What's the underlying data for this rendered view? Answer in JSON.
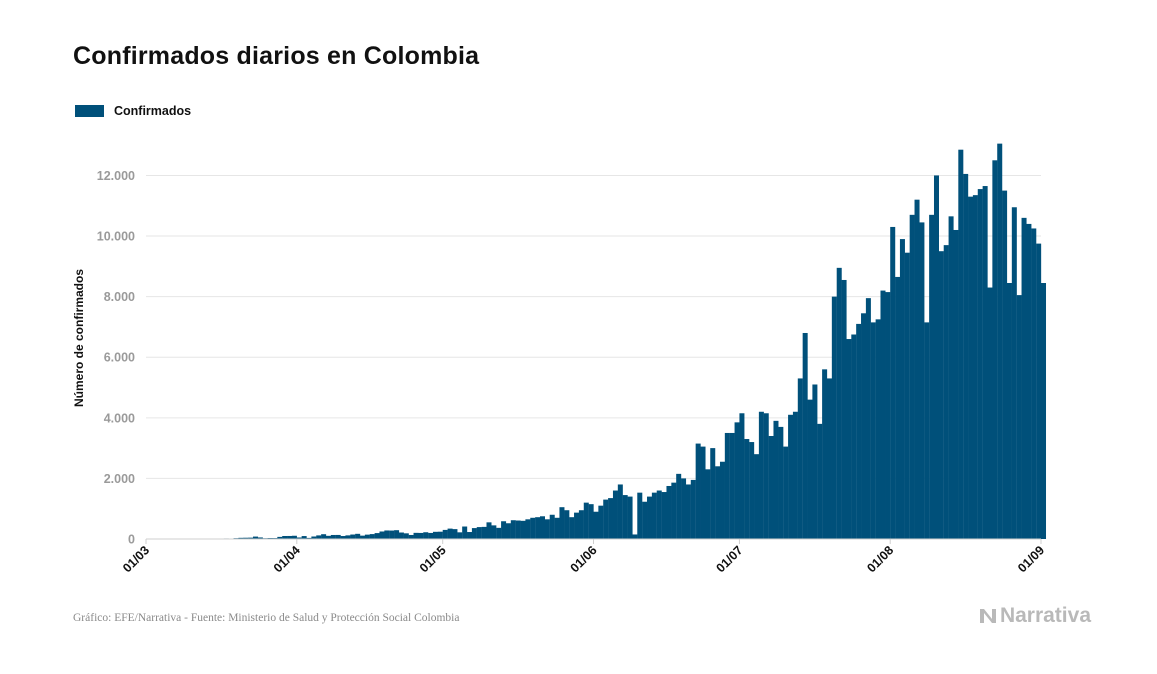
{
  "title": "Confirmados diarios en Colombia",
  "source": "Gráfico: EFE/Narrativa - Fuente: Ministerio de Salud y Protección Social Colombia",
  "brand": "Narrativa",
  "colors": {
    "bar": "#00507a",
    "grid": "#e6e6e6",
    "tick_text": "#9a9a9a",
    "title": "#111111"
  },
  "chart_data": {
    "type": "bar",
    "title": "Confirmados diarios en Colombia",
    "xlabel": "",
    "ylabel": "Número de confirmados",
    "x_start": "2020-03-06",
    "x_ticks": [
      {
        "date": "2020-03-01",
        "label": "01/03"
      },
      {
        "date": "2020-04-01",
        "label": "01/04"
      },
      {
        "date": "2020-05-01",
        "label": "01/05"
      },
      {
        "date": "2020-06-01",
        "label": "01/06"
      },
      {
        "date": "2020-07-01",
        "label": "01/07"
      },
      {
        "date": "2020-08-01",
        "label": "01/08"
      },
      {
        "date": "2020-09-01",
        "label": "01/09"
      }
    ],
    "y_ticks": [
      {
        "value": 0,
        "label": "0"
      },
      {
        "value": 2000,
        "label": "2.000"
      },
      {
        "value": 4000,
        "label": "4.000"
      },
      {
        "value": 6000,
        "label": "6.000"
      },
      {
        "value": 8000,
        "label": "8.000"
      },
      {
        "value": 10000,
        "label": "10.000"
      },
      {
        "value": 12000,
        "label": "12.000"
      }
    ],
    "ylim": [
      0,
      13500
    ],
    "grid": true,
    "legend": "top-left",
    "series": [
      {
        "name": "Confirmados",
        "values": [
          1,
          0,
          0,
          0,
          2,
          0,
          3,
          4,
          2,
          10,
          9,
          18,
          7,
          27,
          39,
          42,
          45,
          80,
          51,
          26,
          32,
          31,
          70,
          99,
          100,
          107,
          50,
          97,
          36,
          83,
          119,
          158,
          105,
          133,
          134,
          98,
          120,
          148,
          171,
          111,
          144,
          162,
          195,
          248,
          282,
          279,
          291,
          214,
          187,
          133,
          203,
          200,
          223,
          200,
          237,
          241,
          300,
          343,
          326,
          220,
          412,
          230,
          360,
          393,
          400,
          550,
          450,
          368,
          586,
          520,
          620,
          610,
          600,
          650,
          700,
          720,
          750,
          650,
          800,
          700,
          1050,
          950,
          720,
          870,
          950,
          1200,
          1150,
          900,
          1100,
          1300,
          1350,
          1600,
          1800,
          1450,
          1400,
          150,
          1530,
          1230,
          1400,
          1530,
          1600,
          1550,
          1750,
          1860,
          2150,
          2000,
          1800,
          1950,
          3150,
          3050,
          2300,
          3000,
          2400,
          2550,
          3500,
          3500,
          3850,
          4150,
          3300,
          3200,
          2800,
          4200,
          4150,
          3400,
          3900,
          3700,
          3050,
          4100,
          4200,
          5300,
          6800,
          4600,
          5100,
          3800,
          5600,
          5300,
          8000,
          8950,
          8550,
          6600,
          6750,
          7100,
          7450,
          7950,
          7150,
          7250,
          8200,
          8150,
          10300,
          8650,
          9900,
          9450,
          10700,
          11200,
          10450,
          7150,
          10700,
          12000,
          9500,
          9700,
          10650,
          10200,
          12850,
          12050,
          11300,
          11350,
          11550,
          11650,
          8300,
          12500,
          13050,
          11500,
          8450,
          10950,
          8050,
          10600,
          10400,
          10250,
          9750,
          8450
        ]
      }
    ]
  }
}
